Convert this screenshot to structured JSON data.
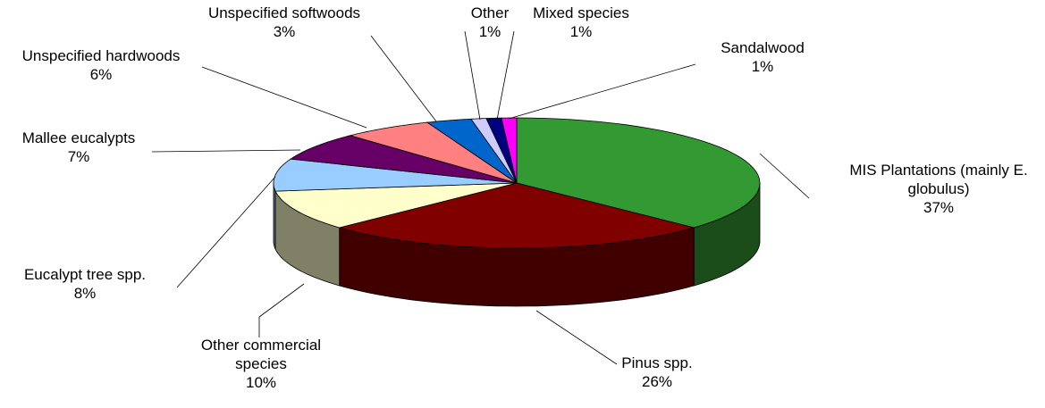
{
  "chart_data": {
    "type": "pie3d",
    "categories": [
      "MIS Plantations (mainly E. globulus)",
      "Pinus spp.",
      "Other commercial species",
      "Eucalypt tree spp.",
      "Mallee eucalypts",
      "Unspecified hardwoods",
      "Unspecified softwoods",
      "Other",
      "Mixed species",
      "Sandalwood"
    ],
    "values": [
      37,
      26,
      10,
      8,
      7,
      6,
      3,
      1,
      1,
      1
    ],
    "value_labels": [
      "37%",
      "26%",
      "10%",
      "8%",
      "7%",
      "6%",
      "3%",
      "1%",
      "1%",
      "1%"
    ],
    "colors": [
      "#339933",
      "#800000",
      "#ffffcc",
      "#99ccff",
      "#660066",
      "#ff8080",
      "#0066cc",
      "#ccccff",
      "#000080",
      "#ff00ff"
    ]
  }
}
